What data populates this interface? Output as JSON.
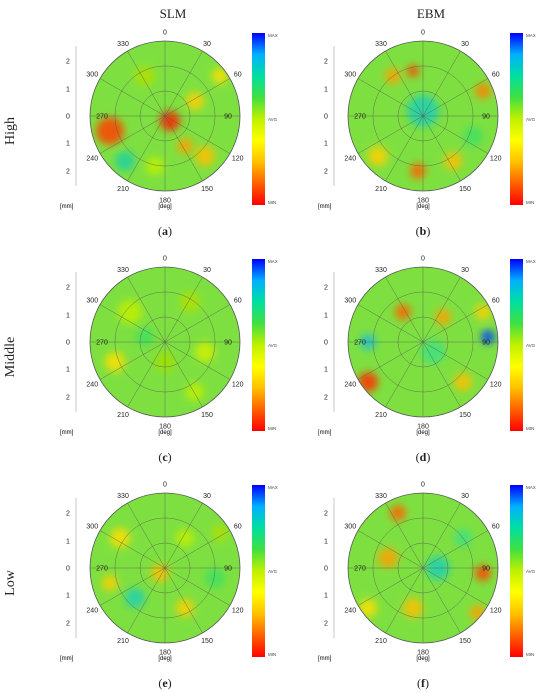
{
  "columns": [
    "SLM",
    "EBM"
  ],
  "rows": [
    "High",
    "Middle",
    "Low"
  ],
  "panels": [
    {
      "caption": "(a)",
      "row": "High",
      "column": "SLM"
    },
    {
      "caption": "(b)",
      "row": "High",
      "column": "EBM"
    },
    {
      "caption": "(c)",
      "row": "Middle",
      "column": "SLM"
    },
    {
      "caption": "(d)",
      "row": "Middle",
      "column": "EBM"
    },
    {
      "caption": "(e)",
      "row": "Low",
      "column": "SLM"
    },
    {
      "caption": "(f)",
      "row": "Low",
      "column": "EBM"
    }
  ],
  "angle_labels": [
    "0",
    "30",
    "60",
    "90",
    "120",
    "150",
    "180",
    "210",
    "240",
    "270",
    "300",
    "330"
  ],
  "radial_labels": [
    "2",
    "1",
    "0",
    "1",
    "2"
  ],
  "unit_mm": "[mm]",
  "unit_deg": "[deg]",
  "colorbar_labels": {
    "max": "MAX",
    "avg": "AVG",
    "min": "MIN"
  },
  "colorbar_colors": [
    "#0000ff",
    "#00b0ff",
    "#00e0a0",
    "#40e040",
    "#c0f000",
    "#ffff00",
    "#ffc000",
    "#ff6000",
    "#ff0000"
  ]
}
